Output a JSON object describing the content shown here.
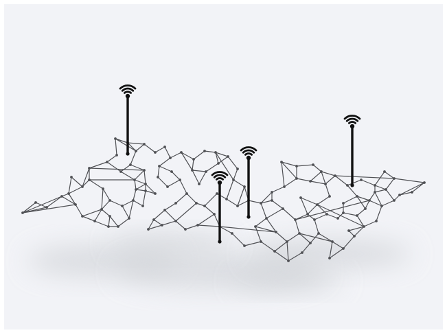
{
  "image": {
    "subject": "network-mesh-with-wifi-antennas",
    "background_color": "#f2f3f7",
    "line_color": "#4f5054",
    "node_color": "#4f5054",
    "antenna_color": "#111111",
    "shadow_color": "#cfd1d6"
  },
  "icons": [
    "wifi-icon",
    "wifi-icon",
    "wifi-icon",
    "wifi-icon"
  ]
}
